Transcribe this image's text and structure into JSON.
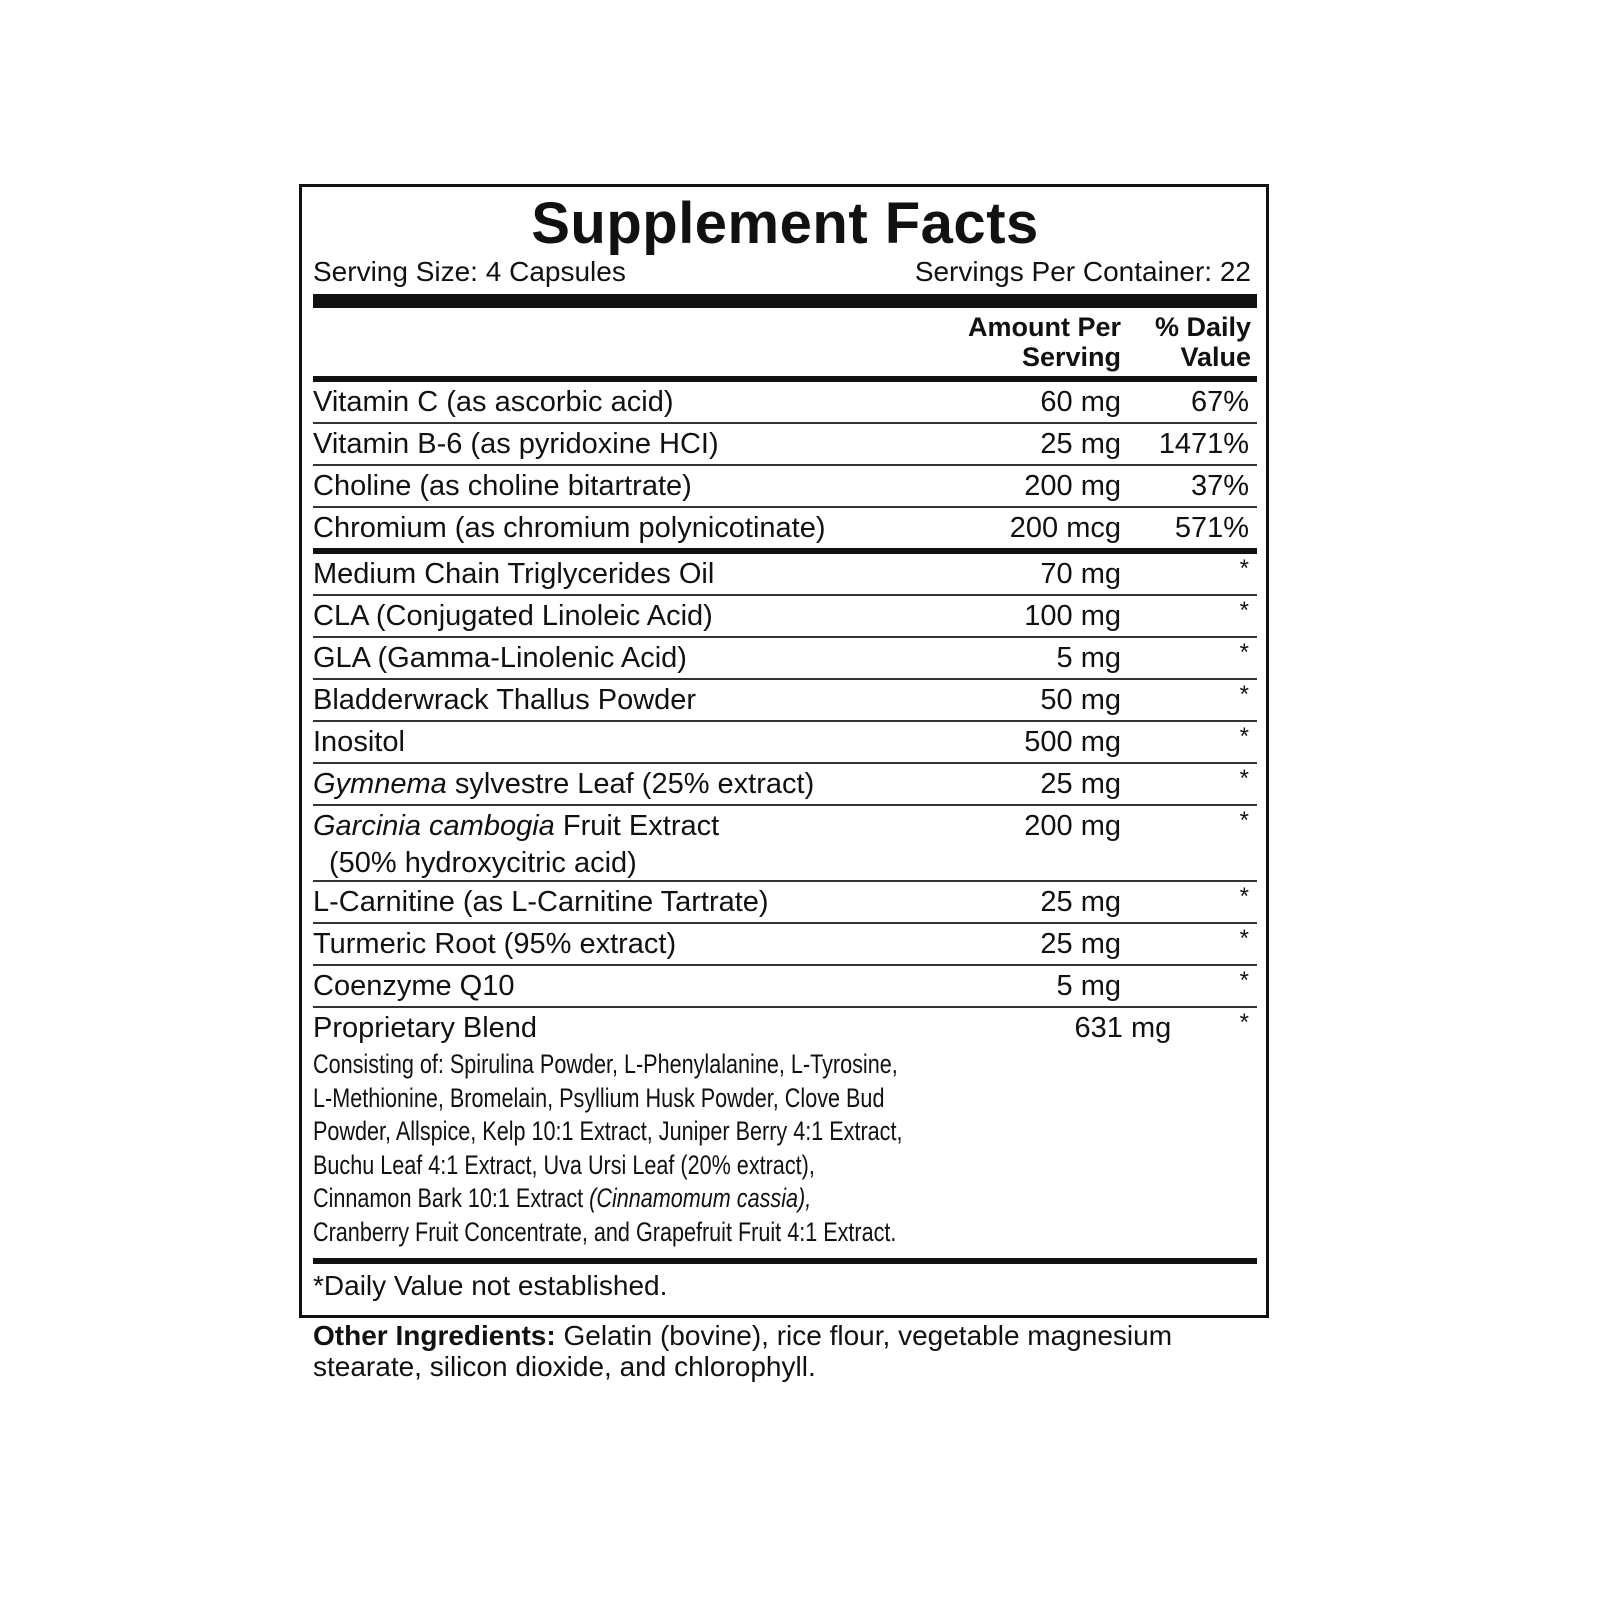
{
  "title": "Supplement Facts",
  "serving_size": "Serving Size: 4 Capsules",
  "servings_per_container": "Servings Per Container: 22",
  "columns": {
    "amount": "Amount Per Serving",
    "daily_value": "% Daily Value"
  },
  "vitamins": [
    {
      "name": "Vitamin C (as ascorbic acid)",
      "amount": "60 mg",
      "daily_value": "67%"
    },
    {
      "name": "Vitamin B-6 (as pyridoxine HCI)",
      "amount": "25 mg",
      "daily_value": "1471%"
    },
    {
      "name": "Choline (as choline bitartrate)",
      "amount": "200 mg",
      "daily_value": "37%"
    },
    {
      "name": "Chromium (as chromium polynicotinate)",
      "amount": "200 mcg",
      "daily_value": "571%"
    }
  ],
  "ingredients": [
    {
      "name": "Medium Chain Triglycerides Oil",
      "amount": "70 mg",
      "daily_value": "*"
    },
    {
      "name": "CLA (Conjugated Linoleic Acid)",
      "amount": "100 mg",
      "daily_value": "*"
    },
    {
      "name": "GLA (Gamma-Linolenic Acid)",
      "amount": "5 mg",
      "daily_value": "*"
    },
    {
      "name": "Bladderwrack Thallus Powder",
      "amount": "50 mg",
      "daily_value": "*"
    },
    {
      "name": "Inositol",
      "amount": "500 mg",
      "daily_value": "*"
    },
    {
      "name_italic": "Gymnema",
      "name": "sylvestre Leaf (25% extract)",
      "amount": "25 mg",
      "daily_value": "*"
    },
    {
      "name_italic": "Garcinia cambogia",
      "name": "Fruit Extract",
      "note": "(50% hydroxycitric acid)",
      "amount": "200 mg",
      "daily_value": "*"
    },
    {
      "name": "L-Carnitine (as L-Carnitine Tartrate)",
      "amount": "25 mg",
      "daily_value": "*"
    },
    {
      "name": "Turmeric Root (95% extract)",
      "amount": "25 mg",
      "daily_value": "*"
    },
    {
      "name": "Coenzyme Q10",
      "amount": "5 mg",
      "daily_value": "*"
    },
    {
      "name": "Proprietary Blend",
      "amount": "631 mg",
      "daily_value": "*",
      "description": [
        "Consisting of: Spirulina Powder, L-Phenylalanine, L-Tyrosine,",
        "L-Methionine, Bromelain, Psyllium Husk Powder, Clove Bud",
        "Powder, Allspice, Kelp 10:1 Extract, Juniper Berry 4:1 Extract,",
        "Buchu Leaf 4:1 Extract, Uva Ursi Leaf (20% extract),",
        "Cinnamon Bark 10:1 Extract",
        "Cranberry Fruit Concentrate, and Grapefruit Fruit 4:1 Extract."
      ],
      "description_italic": "(Cinnamomum cassia),"
    }
  ],
  "footnote": "*Daily Value not established.",
  "other_ingredients": {
    "label": "Other Ingredients:",
    "text": "Gelatin (bovine), rice flour, vegetable magnesium stearate, silicon dioxide, and chlorophyll."
  }
}
